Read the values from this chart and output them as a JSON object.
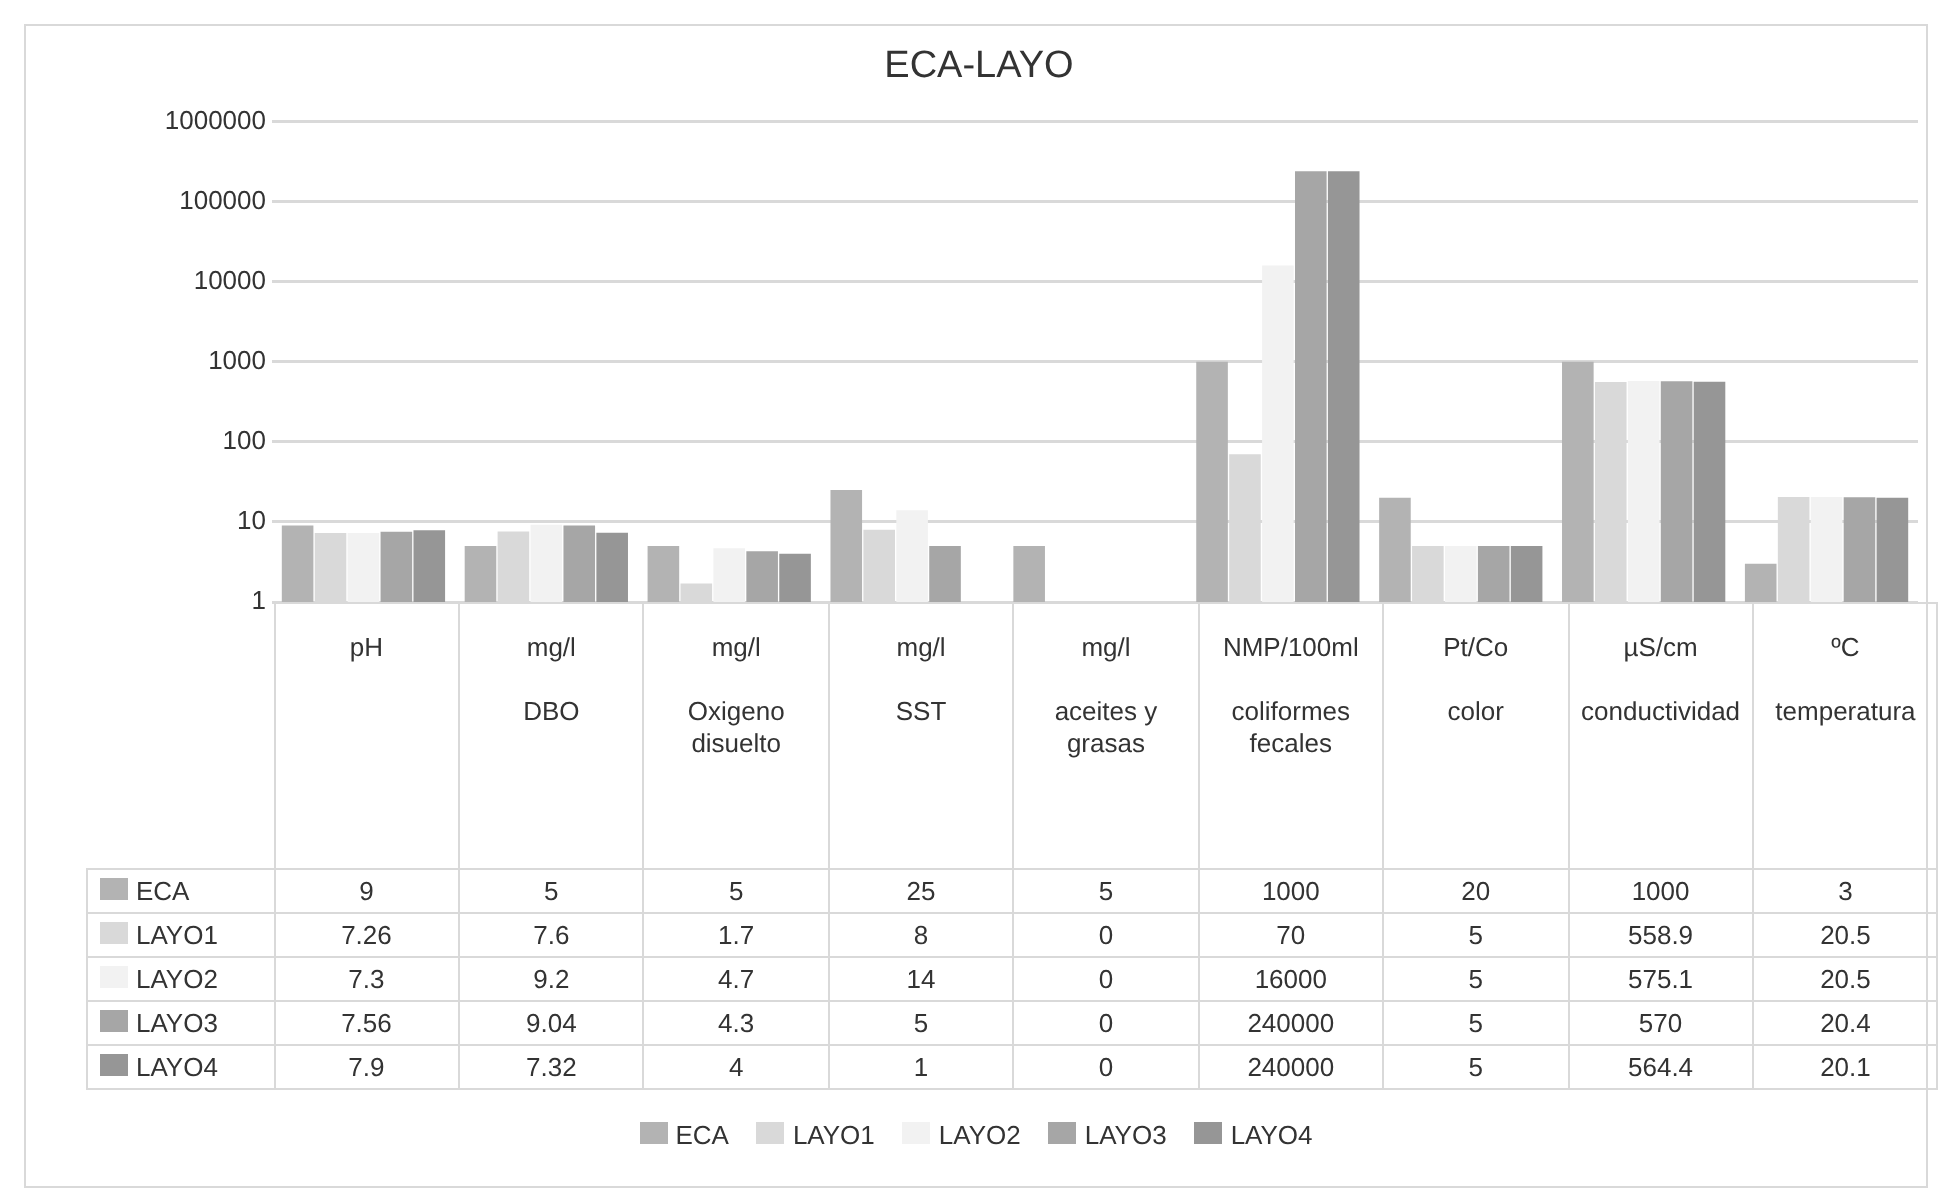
{
  "chart_data": {
    "type": "bar",
    "title": "ECA-LAYO",
    "categories": [
      "pH",
      "mg/l\nDBO",
      "mg/l\nOxigeno disuelto",
      "mg/l\nSST",
      "mg/l\naceites y grasas",
      "NMP/100ml\ncoliformes fecales",
      "Pt/Co\ncolor",
      "µS/cm\nconductividad",
      "ºC\ntemperatura"
    ],
    "series": [
      {
        "name": "ECA",
        "color": "#b3b3b3",
        "values": [
          9,
          5,
          5,
          25,
          5,
          1000,
          20,
          1000,
          3
        ],
        "value_labels": [
          "9",
          "5",
          "5",
          "25",
          "5",
          "1000",
          "20",
          "1000",
          "3"
        ]
      },
      {
        "name": "LAYO1",
        "color": "#d9d9d9",
        "values": [
          7.26,
          7.6,
          1.7,
          8,
          null,
          70,
          5,
          558.9,
          20.5
        ],
        "value_labels": [
          "7.26",
          "7.6",
          "1.7",
          "8",
          "0",
          "70",
          "5",
          "558.9",
          "20.5"
        ]
      },
      {
        "name": "LAYO2",
        "color": "#f2f2f2",
        "values": [
          7.3,
          9.2,
          4.7,
          14,
          null,
          16000,
          5,
          575.1,
          20.5
        ],
        "value_labels": [
          "7.3",
          "9.2",
          "4.7",
          "14",
          "0",
          "16000",
          "5",
          "575.1",
          "20.5"
        ]
      },
      {
        "name": "LAYO3",
        "color": "#a6a6a6",
        "values": [
          7.56,
          9.04,
          4.3,
          5,
          null,
          240000,
          5,
          570,
          20.4
        ],
        "value_labels": [
          "7.56",
          "9.04",
          "4.3",
          "5",
          "0",
          "240000",
          "5",
          "570",
          "20.4"
        ]
      },
      {
        "name": "LAYO4",
        "color": "#969696",
        "values": [
          7.9,
          7.32,
          4,
          null,
          null,
          240000,
          5,
          564.4,
          20.1
        ],
        "value_labels": [
          "7.9",
          "7.32",
          "4",
          "1",
          "0",
          "240000",
          "5",
          "564.4",
          "20.1"
        ]
      }
    ],
    "log": true,
    "ylim": [
      1,
      1000000
    ],
    "yticks": [
      1,
      10,
      100,
      1000,
      10000,
      100000,
      1000000
    ],
    "grid": "y",
    "legend": "bottom"
  }
}
